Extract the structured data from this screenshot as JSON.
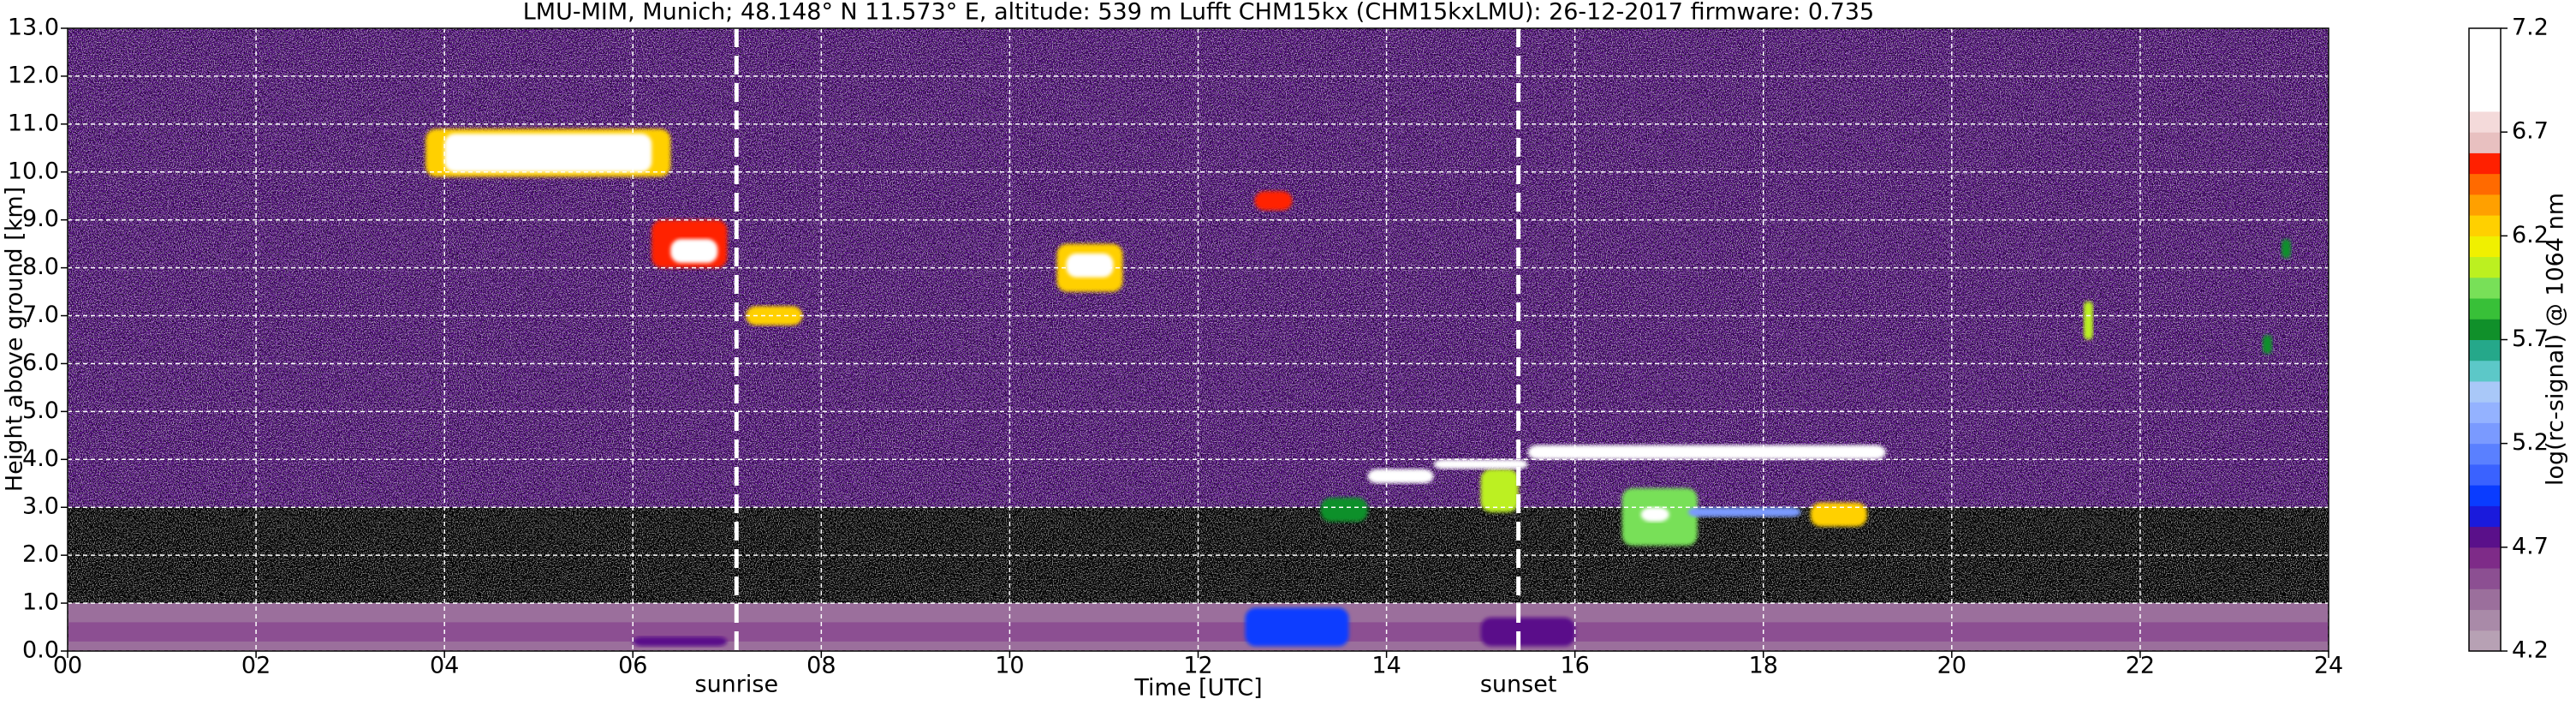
{
  "chart_data": {
    "type": "heatmap",
    "title": "LMU-MIM, Munich; 48.148° N 11.573° E, altitude: 539 m    Lufft CHM15kx (CHM15kxLMU): 26-12-2017     firmware: 0.735",
    "x_label": "Time [UTC]",
    "y_label": "Height above ground [km]",
    "colorbar_label": "log(rc-signal) @ 1064 nm",
    "xlim": [
      0,
      24
    ],
    "xticks": [
      {
        "value": 0,
        "label": "00"
      },
      {
        "value": 2,
        "label": "02"
      },
      {
        "value": 4,
        "label": "04"
      },
      {
        "value": 6,
        "label": "06"
      },
      {
        "value": 8,
        "label": "08"
      },
      {
        "value": 10,
        "label": "10"
      },
      {
        "value": 12,
        "label": "12"
      },
      {
        "value": 14,
        "label": "14"
      },
      {
        "value": 16,
        "label": "16"
      },
      {
        "value": 18,
        "label": "18"
      },
      {
        "value": 20,
        "label": "20"
      },
      {
        "value": 22,
        "label": "22"
      },
      {
        "value": 24,
        "label": "24"
      }
    ],
    "ylim": [
      0,
      13
    ],
    "yticks": [
      {
        "value": 0,
        "label": "0.0"
      },
      {
        "value": 1,
        "label": "1.0"
      },
      {
        "value": 2,
        "label": "2.0"
      },
      {
        "value": 3,
        "label": "3.0"
      },
      {
        "value": 4,
        "label": "4.0"
      },
      {
        "value": 5,
        "label": "5.0"
      },
      {
        "value": 6,
        "label": "6.0"
      },
      {
        "value": 7,
        "label": "7.0"
      },
      {
        "value": 8,
        "label": "8.0"
      },
      {
        "value": 9,
        "label": "9.0"
      },
      {
        "value": 10,
        "label": "10.0"
      },
      {
        "value": 11,
        "label": "11.0"
      },
      {
        "value": 12,
        "label": "12.0"
      },
      {
        "value": 13,
        "label": "13.0"
      }
    ],
    "clim": [
      4.2,
      7.2
    ],
    "cticks": [
      4.2,
      4.7,
      5.2,
      5.7,
      6.2,
      6.7,
      7.2
    ],
    "colormap": [
      "#b7a1b4",
      "#a98aa8",
      "#9b6f9c",
      "#8c4f92",
      "#7e2b88",
      "#5a108a",
      "#1a1adc",
      "#0a3cff",
      "#3a62ff",
      "#5a80ff",
      "#7a9aff",
      "#94b2ff",
      "#a9c8f8",
      "#5cc8c8",
      "#25a88a",
      "#10902a",
      "#38c038",
      "#78e058",
      "#bcf020",
      "#f0f000",
      "#ffd000",
      "#ffa000",
      "#ff6a00",
      "#ff2000",
      "#e8c0c0",
      "#f4dada",
      "#ffffff",
      "#ffffff",
      "#ffffff",
      "#ffffff"
    ],
    "under_color": "#000000",
    "grid": true,
    "regions": [
      {
        "x": [
          0,
          24
        ],
        "y": [
          3,
          13
        ],
        "value": 4.8
      },
      {
        "x": [
          0,
          24
        ],
        "y": [
          1,
          3
        ],
        "value": 4.0
      },
      {
        "x": [
          0,
          24
        ],
        "y": [
          0,
          1
        ],
        "value": 4.4
      },
      {
        "x": [
          0,
          24
        ],
        "y": [
          0.2,
          0.6
        ],
        "value": 4.6
      },
      {
        "x": [
          6,
          7
        ],
        "y": [
          0.1,
          0.3
        ],
        "value": 4.8
      },
      {
        "x": [
          12.5,
          13.6
        ],
        "y": [
          0.1,
          0.9
        ],
        "value": 4.9
      },
      {
        "x": [
          15,
          16
        ],
        "y": [
          0.1,
          0.7
        ],
        "value": 4.8
      },
      {
        "x": [
          3.8,
          6.4
        ],
        "y": [
          9.9,
          10.9
        ],
        "value": 6.3
      },
      {
        "x": [
          4,
          6.2
        ],
        "y": [
          10,
          10.8
        ],
        "value": 7.0
      },
      {
        "x": [
          6.2,
          7.0
        ],
        "y": [
          8.0,
          9.0
        ],
        "value": 6.5
      },
      {
        "x": [
          6.4,
          6.9
        ],
        "y": [
          8.1,
          8.6
        ],
        "value": 7.0
      },
      {
        "x": [
          7.2,
          7.8
        ],
        "y": [
          6.8,
          7.2
        ],
        "value": 6.3
      },
      {
        "x": [
          10.5,
          11.2
        ],
        "y": [
          7.5,
          8.5
        ],
        "value": 6.3
      },
      {
        "x": [
          10.6,
          11.1
        ],
        "y": [
          7.8,
          8.3
        ],
        "value": 7.0
      },
      {
        "x": [
          12.6,
          13.0
        ],
        "y": [
          9.2,
          9.6
        ],
        "value": 6.6
      },
      {
        "x": [
          13.3,
          13.8
        ],
        "y": [
          2.7,
          3.2
        ],
        "value": 5.8
      },
      {
        "x": [
          15.0,
          15.4
        ],
        "y": [
          2.9,
          3.8
        ],
        "value": 6.0
      },
      {
        "x": [
          16.5,
          17.3
        ],
        "y": [
          2.2,
          3.4
        ],
        "value": 5.9
      },
      {
        "x": [
          16.7,
          17.0
        ],
        "y": [
          2.7,
          3.0
        ],
        "value": 7.0
      },
      {
        "x": [
          17.2,
          18.4
        ],
        "y": [
          2.8,
          3.0
        ],
        "value": 5.2
      },
      {
        "x": [
          18.5,
          19.1
        ],
        "y": [
          2.6,
          3.1
        ],
        "value": 6.3
      },
      {
        "x": [
          13.8,
          14.5
        ],
        "y": [
          3.5,
          3.8
        ],
        "value": 7.0
      },
      {
        "x": [
          14.5,
          15.5
        ],
        "y": [
          3.8,
          4.0
        ],
        "value": 7.0
      },
      {
        "x": [
          15.5,
          19.3
        ],
        "y": [
          4.0,
          4.3
        ],
        "value": 7.0
      },
      {
        "x": [
          21.4,
          21.5
        ],
        "y": [
          6.5,
          7.3
        ],
        "value": 6.1
      },
      {
        "x": [
          23.3,
          23.4
        ],
        "y": [
          6.2,
          6.6
        ],
        "value": 5.8
      },
      {
        "x": [
          23.5,
          23.6
        ],
        "y": [
          8.2,
          8.6
        ],
        "value": 5.8
      }
    ],
    "annotations": [
      {
        "x": 7.1,
        "label": "sunrise"
      },
      {
        "x": 15.4,
        "label": "sunset"
      }
    ]
  }
}
